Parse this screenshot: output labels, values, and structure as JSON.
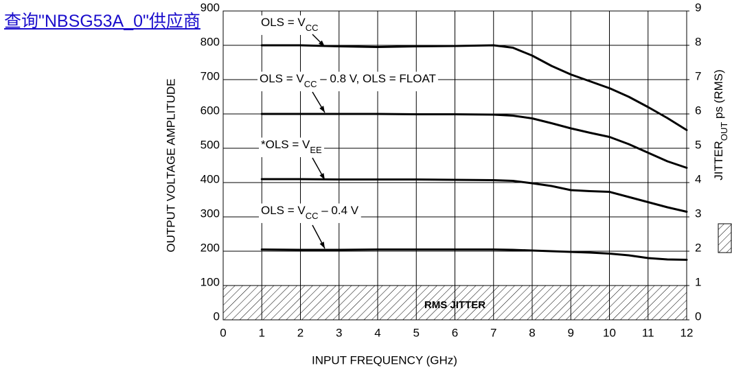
{
  "link": "查询\"NBSG53A_0\"供应商",
  "chart_data": {
    "type": "line",
    "xlabel": "INPUT FREQUENCY (GHz)",
    "ylabel": "OUTPUT VOLTAGE AMPLITUDE",
    "y2label": {
      "parts": [
        {
          "t": "JITTER"
        },
        {
          "t": "OUT",
          "sub": true
        },
        {
          "t": " ps (RMS)"
        }
      ]
    },
    "xlim": [
      0,
      12
    ],
    "xticks": [
      0,
      1,
      2,
      3,
      4,
      5,
      6,
      7,
      8,
      9,
      10,
      11,
      12
    ],
    "ylim": [
      0,
      900
    ],
    "yticks": [
      0,
      100,
      200,
      300,
      400,
      500,
      600,
      700,
      800,
      900
    ],
    "y2lim": [
      0,
      9
    ],
    "y2ticks": [
      0,
      1,
      2,
      3,
      4,
      5,
      6,
      7,
      8,
      9
    ],
    "grid": true,
    "x": [
      1,
      2,
      3,
      4,
      5,
      6,
      7,
      7.5,
      8,
      8.5,
      9,
      9.5,
      10,
      10.5,
      11,
      11.5,
      12
    ],
    "series": [
      {
        "color": "#000000",
        "values": [
          800,
          800,
          797,
          795,
          797,
          798,
          800,
          793,
          770,
          740,
          715,
          695,
          675,
          650,
          620,
          588,
          553
        ]
      },
      {
        "color": "#000000",
        "values": [
          600,
          600,
          600,
          600,
          599,
          599,
          598,
          595,
          587,
          573,
          558,
          545,
          533,
          512,
          487,
          462,
          443
        ]
      },
      {
        "color": "#000000",
        "values": [
          410,
          410,
          409,
          409,
          409,
          408,
          407,
          405,
          398,
          390,
          378,
          375,
          373,
          358,
          343,
          328,
          315
        ]
      },
      {
        "color": "#000000",
        "values": [
          205,
          204,
          204,
          205,
          205,
          205,
          205,
          204,
          202,
          200,
          198,
          196,
          193,
          188,
          180,
          176,
          175
        ]
      }
    ],
    "annotations": [
      {
        "parts": [
          {
            "t": "OLS = V"
          },
          {
            "t": "CC",
            "sub": true
          }
        ]
      },
      {
        "parts": [
          {
            "t": "OLS = V"
          },
          {
            "t": "CC",
            "sub": true
          },
          {
            "t": " – 0.8 V, OLS = FLOAT"
          }
        ]
      },
      {
        "parts": [
          {
            "t": "*OLS = V"
          },
          {
            "t": "EE",
            "sub": true
          }
        ]
      },
      {
        "parts": [
          {
            "t": "OLS = V"
          },
          {
            "t": "CC",
            "sub": true
          },
          {
            "t": " – 0.4 V"
          }
        ]
      }
    ],
    "band": {
      "label": "RMS JITTER",
      "y2": 1
    }
  }
}
